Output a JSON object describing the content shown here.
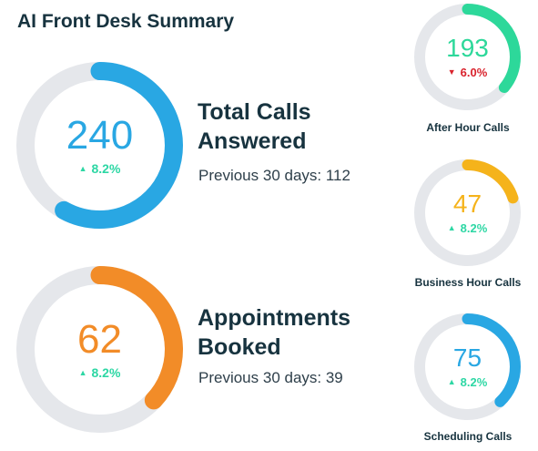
{
  "title": "AI Front Desk Summary",
  "colors": {
    "track": "#e5e7eb",
    "up": "#2dd7a4",
    "down": "#d9232d",
    "blue": "#29a7e3",
    "orange": "#f28c28",
    "green": "#2dd89a",
    "yellow": "#f5b31b"
  },
  "metrics": {
    "total_calls": {
      "value": "240",
      "change": "8.2%",
      "direction": "up",
      "title_line1": "Total Calls",
      "title_line2": "Answered",
      "previous": "Previous 30 days: 112",
      "ring_fill": 0.58
    },
    "appointments": {
      "value": "62",
      "change": "8.2%",
      "direction": "up",
      "title_line1": "Appointments",
      "title_line2": "Booked",
      "previous": "Previous 30 days: 39",
      "ring_fill": 0.37
    },
    "after_hour": {
      "value": "193",
      "change": "6.0%",
      "direction": "down",
      "label": "After Hour Calls",
      "ring_fill": 0.36
    },
    "business_hour": {
      "value": "47",
      "change": "8.2%",
      "direction": "up",
      "label": "Business Hour Calls",
      "ring_fill": 0.2
    },
    "scheduling": {
      "value": "75",
      "change": "8.2%",
      "direction": "up",
      "label": "Scheduling Calls",
      "ring_fill": 0.38
    }
  }
}
